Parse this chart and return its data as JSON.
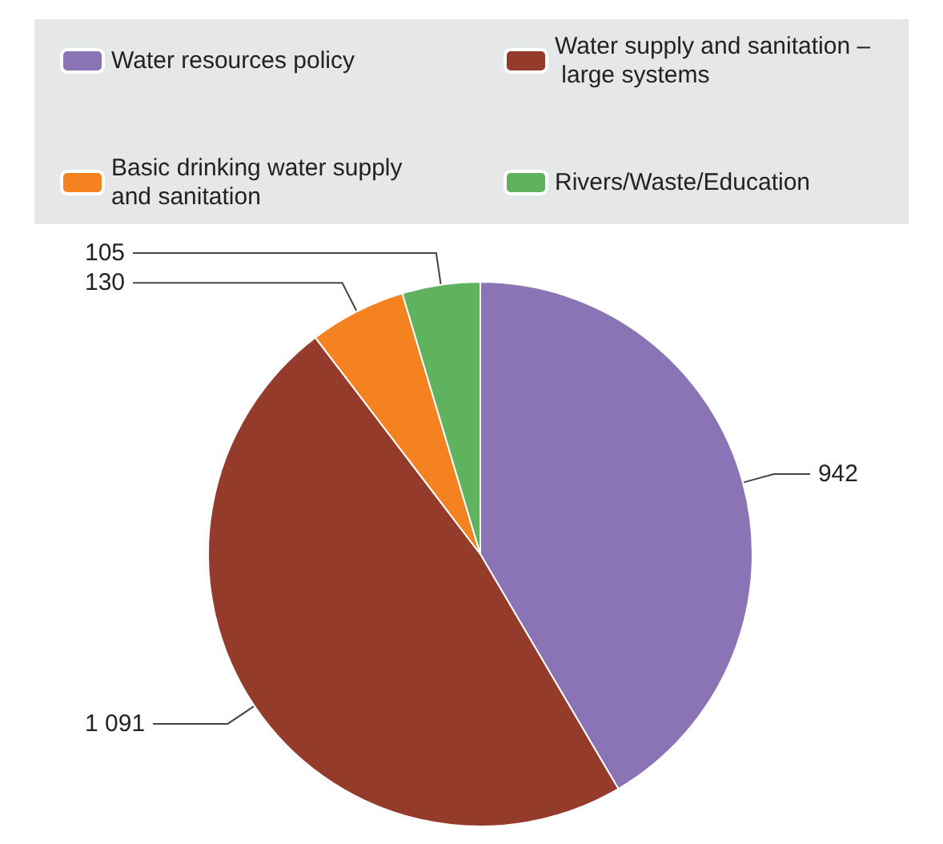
{
  "chart_data": {
    "type": "pie",
    "categories": [
      "Water resources policy",
      "Water supply and sanitation – large systems",
      "Basic drinking water supply and sanitation",
      "Rivers/Waste/Education"
    ],
    "values": [
      942,
      1091,
      130,
      105
    ],
    "colors": [
      "#8b74b5",
      "#943b2c",
      "#f58220",
      "#5fb35f"
    ],
    "value_labels": [
      "942",
      "1 091",
      "130",
      "105"
    ],
    "legend": "top"
  }
}
